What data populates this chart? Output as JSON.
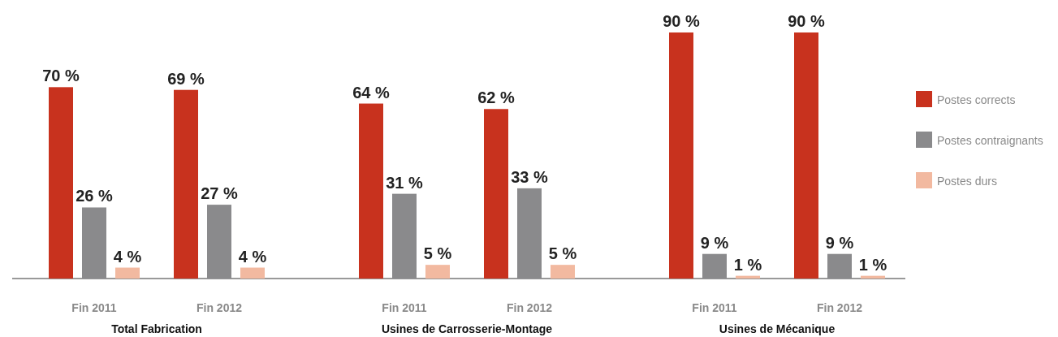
{
  "chart_data": [
    {
      "type": "bar",
      "xlabel": "Total Fabrication",
      "categories": [
        "Fin 2011",
        "Fin 2012"
      ],
      "legend": false,
      "series": [
        {
          "color": "#c8321e",
          "values": [
            70,
            69
          ],
          "value_labels": [
            "70 %",
            "69 %"
          ]
        },
        {
          "color": "#8a8a8c",
          "values": [
            26,
            27
          ],
          "value_labels": [
            "26 %",
            "27 %"
          ]
        },
        {
          "color": "#f2b9a0",
          "values": [
            4,
            4
          ],
          "value_labels": [
            "4 %",
            "4 %"
          ]
        }
      ]
    },
    {
      "type": "bar",
      "xlabel": "Usines de Carrosserie-Montage",
      "categories": [
        "Fin 2011",
        "Fin 2012"
      ],
      "legend": false,
      "series": [
        {
          "color": "#c8321e",
          "values": [
            64,
            62
          ],
          "value_labels": [
            "64 %",
            "62 %"
          ]
        },
        {
          "color": "#8a8a8c",
          "values": [
            31,
            33
          ],
          "value_labels": [
            "31 %",
            "33 %"
          ]
        },
        {
          "color": "#f2b9a0",
          "values": [
            5,
            5
          ],
          "value_labels": [
            "5 %",
            "5 %"
          ]
        }
      ]
    },
    {
      "type": "bar",
      "xlabel": "Usines de Mécanique",
      "categories": [
        "Fin 2011",
        "Fin 2012"
      ],
      "legend": "right",
      "series": [
        {
          "name": "Postes corrects",
          "color": "#c8321e",
          "values": [
            90,
            90
          ],
          "value_labels": [
            "90 %",
            "90 %"
          ]
        },
        {
          "name": "Postes contraignants",
          "color": "#8a8a8c",
          "values": [
            9,
            9
          ],
          "value_labels": [
            "9 %",
            "9 %"
          ]
        },
        {
          "name": "Postes durs",
          "color": "#f2b9a0",
          "values": [
            1,
            1
          ],
          "value_labels": [
            "1 %",
            "1 %"
          ]
        }
      ]
    }
  ]
}
